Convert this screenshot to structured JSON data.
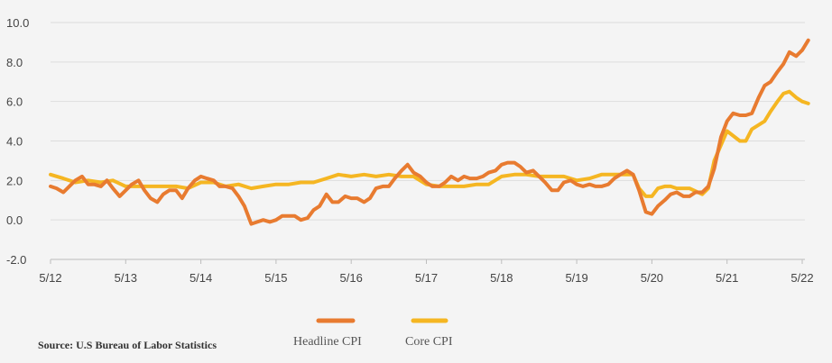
{
  "source": "Source: U.S Bureau of Labor Statistics",
  "chart_data": {
    "type": "line",
    "title": "",
    "xlabel": "",
    "ylabel": "",
    "ylim": [
      -2,
      10
    ],
    "y_ticks": [
      {
        "value": 10,
        "label": "10.0"
      },
      {
        "value": 8,
        "label": "8.0"
      },
      {
        "value": 6,
        "label": "6.0"
      },
      {
        "value": 4,
        "label": "4.0"
      },
      {
        "value": 2,
        "label": "2.0"
      },
      {
        "value": 0,
        "label": "0.0"
      },
      {
        "value": -2,
        "label": "-2.0"
      }
    ],
    "x_ticks": [
      {
        "value": 2012.0,
        "label": "5/12"
      },
      {
        "value": 2013.0,
        "label": "5/13"
      },
      {
        "value": 2014.0,
        "label": "5/14"
      },
      {
        "value": 2015.0,
        "label": "5/15"
      },
      {
        "value": 2016.0,
        "label": "5/16"
      },
      {
        "value": 2017.0,
        "label": "5/17"
      },
      {
        "value": 2018.0,
        "label": "5/18"
      },
      {
        "value": 2019.0,
        "label": "5/19"
      },
      {
        "value": 2020.0,
        "label": "5/20"
      },
      {
        "value": 2021.0,
        "label": "5/21"
      },
      {
        "value": 2022.0,
        "label": "5/22"
      }
    ],
    "grid": true,
    "legend_position": "bottom",
    "series": [
      {
        "name": "Headline CPI",
        "color": "#e87b30",
        "points": [
          [
            2012.0,
            1.7
          ],
          [
            2012.08,
            1.6
          ],
          [
            2012.17,
            1.4
          ],
          [
            2012.25,
            1.7
          ],
          [
            2012.33,
            2.0
          ],
          [
            2012.42,
            2.2
          ],
          [
            2012.5,
            1.8
          ],
          [
            2012.58,
            1.8
          ],
          [
            2012.67,
            1.7
          ],
          [
            2012.75,
            2.0
          ],
          [
            2012.83,
            1.6
          ],
          [
            2012.92,
            1.2
          ],
          [
            2013.0,
            1.5
          ],
          [
            2013.08,
            1.8
          ],
          [
            2013.17,
            2.0
          ],
          [
            2013.25,
            1.5
          ],
          [
            2013.33,
            1.1
          ],
          [
            2013.42,
            0.9
          ],
          [
            2013.5,
            1.3
          ],
          [
            2013.58,
            1.5
          ],
          [
            2013.67,
            1.5
          ],
          [
            2013.75,
            1.1
          ],
          [
            2013.83,
            1.6
          ],
          [
            2013.92,
            2.0
          ],
          [
            2014.0,
            2.2
          ],
          [
            2014.08,
            2.1
          ],
          [
            2014.17,
            2.0
          ],
          [
            2014.25,
            1.7
          ],
          [
            2014.33,
            1.7
          ],
          [
            2014.42,
            1.6
          ],
          [
            2014.5,
            1.2
          ],
          [
            2014.58,
            0.7
          ],
          [
            2014.67,
            -0.2
          ],
          [
            2014.75,
            -0.1
          ],
          [
            2014.83,
            0.0
          ],
          [
            2014.92,
            -0.1
          ],
          [
            2015.0,
            0.0
          ],
          [
            2015.08,
            0.2
          ],
          [
            2015.17,
            0.2
          ],
          [
            2015.25,
            0.2
          ],
          [
            2015.33,
            0.0
          ],
          [
            2015.42,
            0.1
          ],
          [
            2015.5,
            0.5
          ],
          [
            2015.58,
            0.7
          ],
          [
            2015.67,
            1.3
          ],
          [
            2015.75,
            0.9
          ],
          [
            2015.83,
            0.9
          ],
          [
            2015.92,
            1.2
          ],
          [
            2016.0,
            1.1
          ],
          [
            2016.08,
            1.1
          ],
          [
            2016.17,
            0.9
          ],
          [
            2016.25,
            1.1
          ],
          [
            2016.33,
            1.6
          ],
          [
            2016.42,
            1.7
          ],
          [
            2016.5,
            1.7
          ],
          [
            2016.58,
            2.1
          ],
          [
            2016.67,
            2.5
          ],
          [
            2016.75,
            2.8
          ],
          [
            2016.83,
            2.4
          ],
          [
            2016.92,
            2.2
          ],
          [
            2017.0,
            1.9
          ],
          [
            2017.08,
            1.7
          ],
          [
            2017.17,
            1.7
          ],
          [
            2017.25,
            1.9
          ],
          [
            2017.33,
            2.2
          ],
          [
            2017.42,
            2.0
          ],
          [
            2017.5,
            2.2
          ],
          [
            2017.58,
            2.1
          ],
          [
            2017.67,
            2.1
          ],
          [
            2017.75,
            2.2
          ],
          [
            2017.83,
            2.4
          ],
          [
            2017.92,
            2.5
          ],
          [
            2018.0,
            2.8
          ],
          [
            2018.08,
            2.9
          ],
          [
            2018.17,
            2.9
          ],
          [
            2018.25,
            2.7
          ],
          [
            2018.33,
            2.4
          ],
          [
            2018.42,
            2.5
          ],
          [
            2018.5,
            2.2
          ],
          [
            2018.58,
            1.9
          ],
          [
            2018.67,
            1.5
          ],
          [
            2018.75,
            1.5
          ],
          [
            2018.83,
            1.9
          ],
          [
            2018.92,
            2.0
          ],
          [
            2019.0,
            1.8
          ],
          [
            2019.08,
            1.7
          ],
          [
            2019.17,
            1.8
          ],
          [
            2019.25,
            1.7
          ],
          [
            2019.33,
            1.7
          ],
          [
            2019.42,
            1.8
          ],
          [
            2019.5,
            2.1
          ],
          [
            2019.58,
            2.3
          ],
          [
            2019.67,
            2.5
          ],
          [
            2019.75,
            2.3
          ],
          [
            2019.83,
            1.5
          ],
          [
            2019.92,
            0.4
          ],
          [
            2020.0,
            0.3
          ],
          [
            2020.08,
            0.7
          ],
          [
            2020.17,
            1.0
          ],
          [
            2020.25,
            1.3
          ],
          [
            2020.33,
            1.4
          ],
          [
            2020.42,
            1.2
          ],
          [
            2020.5,
            1.2
          ],
          [
            2020.58,
            1.4
          ],
          [
            2020.67,
            1.4
          ],
          [
            2020.75,
            1.7
          ],
          [
            2020.83,
            2.6
          ],
          [
            2020.92,
            4.2
          ],
          [
            2021.0,
            5.0
          ],
          [
            2021.08,
            5.4
          ],
          [
            2021.17,
            5.3
          ],
          [
            2021.25,
            5.3
          ],
          [
            2021.33,
            5.4
          ],
          [
            2021.42,
            6.2
          ],
          [
            2021.5,
            6.8
          ],
          [
            2021.58,
            7.0
          ],
          [
            2021.67,
            7.5
          ],
          [
            2021.75,
            7.9
          ],
          [
            2021.83,
            8.5
          ],
          [
            2021.92,
            8.3
          ],
          [
            2022.0,
            8.6
          ],
          [
            2022.08,
            9.1
          ]
        ]
      },
      {
        "name": "Core CPI",
        "color": "#f5b622",
        "points": [
          [
            2012.0,
            2.3
          ],
          [
            2012.17,
            2.1
          ],
          [
            2012.33,
            1.9
          ],
          [
            2012.5,
            2.0
          ],
          [
            2012.67,
            1.9
          ],
          [
            2012.83,
            2.0
          ],
          [
            2013.0,
            1.7
          ],
          [
            2013.17,
            1.7
          ],
          [
            2013.33,
            1.7
          ],
          [
            2013.5,
            1.7
          ],
          [
            2013.67,
            1.7
          ],
          [
            2013.83,
            1.6
          ],
          [
            2014.0,
            1.9
          ],
          [
            2014.17,
            1.9
          ],
          [
            2014.33,
            1.7
          ],
          [
            2014.5,
            1.8
          ],
          [
            2014.67,
            1.6
          ],
          [
            2014.83,
            1.7
          ],
          [
            2015.0,
            1.8
          ],
          [
            2015.17,
            1.8
          ],
          [
            2015.33,
            1.9
          ],
          [
            2015.5,
            1.9
          ],
          [
            2015.67,
            2.1
          ],
          [
            2015.83,
            2.3
          ],
          [
            2016.0,
            2.2
          ],
          [
            2016.17,
            2.3
          ],
          [
            2016.33,
            2.2
          ],
          [
            2016.5,
            2.3
          ],
          [
            2016.67,
            2.2
          ],
          [
            2016.83,
            2.2
          ],
          [
            2017.0,
            1.8
          ],
          [
            2017.17,
            1.7
          ],
          [
            2017.33,
            1.7
          ],
          [
            2017.5,
            1.7
          ],
          [
            2017.67,
            1.8
          ],
          [
            2017.83,
            1.8
          ],
          [
            2018.0,
            2.2
          ],
          [
            2018.17,
            2.3
          ],
          [
            2018.33,
            2.3
          ],
          [
            2018.5,
            2.2
          ],
          [
            2018.67,
            2.2
          ],
          [
            2018.83,
            2.2
          ],
          [
            2019.0,
            2.0
          ],
          [
            2019.17,
            2.1
          ],
          [
            2019.33,
            2.3
          ],
          [
            2019.5,
            2.3
          ],
          [
            2019.67,
            2.3
          ],
          [
            2019.75,
            2.3
          ],
          [
            2019.83,
            1.6
          ],
          [
            2019.92,
            1.2
          ],
          [
            2020.0,
            1.2
          ],
          [
            2020.08,
            1.6
          ],
          [
            2020.17,
            1.7
          ],
          [
            2020.25,
            1.7
          ],
          [
            2020.33,
            1.6
          ],
          [
            2020.5,
            1.6
          ],
          [
            2020.67,
            1.3
          ],
          [
            2020.75,
            1.6
          ],
          [
            2020.83,
            3.0
          ],
          [
            2020.92,
            3.8
          ],
          [
            2021.0,
            4.5
          ],
          [
            2021.17,
            4.0
          ],
          [
            2021.25,
            4.0
          ],
          [
            2021.33,
            4.6
          ],
          [
            2021.5,
            5.0
          ],
          [
            2021.58,
            5.5
          ],
          [
            2021.67,
            6.0
          ],
          [
            2021.75,
            6.4
          ],
          [
            2021.83,
            6.5
          ],
          [
            2021.92,
            6.2
          ],
          [
            2022.0,
            6.0
          ],
          [
            2022.08,
            5.9
          ]
        ]
      }
    ]
  }
}
